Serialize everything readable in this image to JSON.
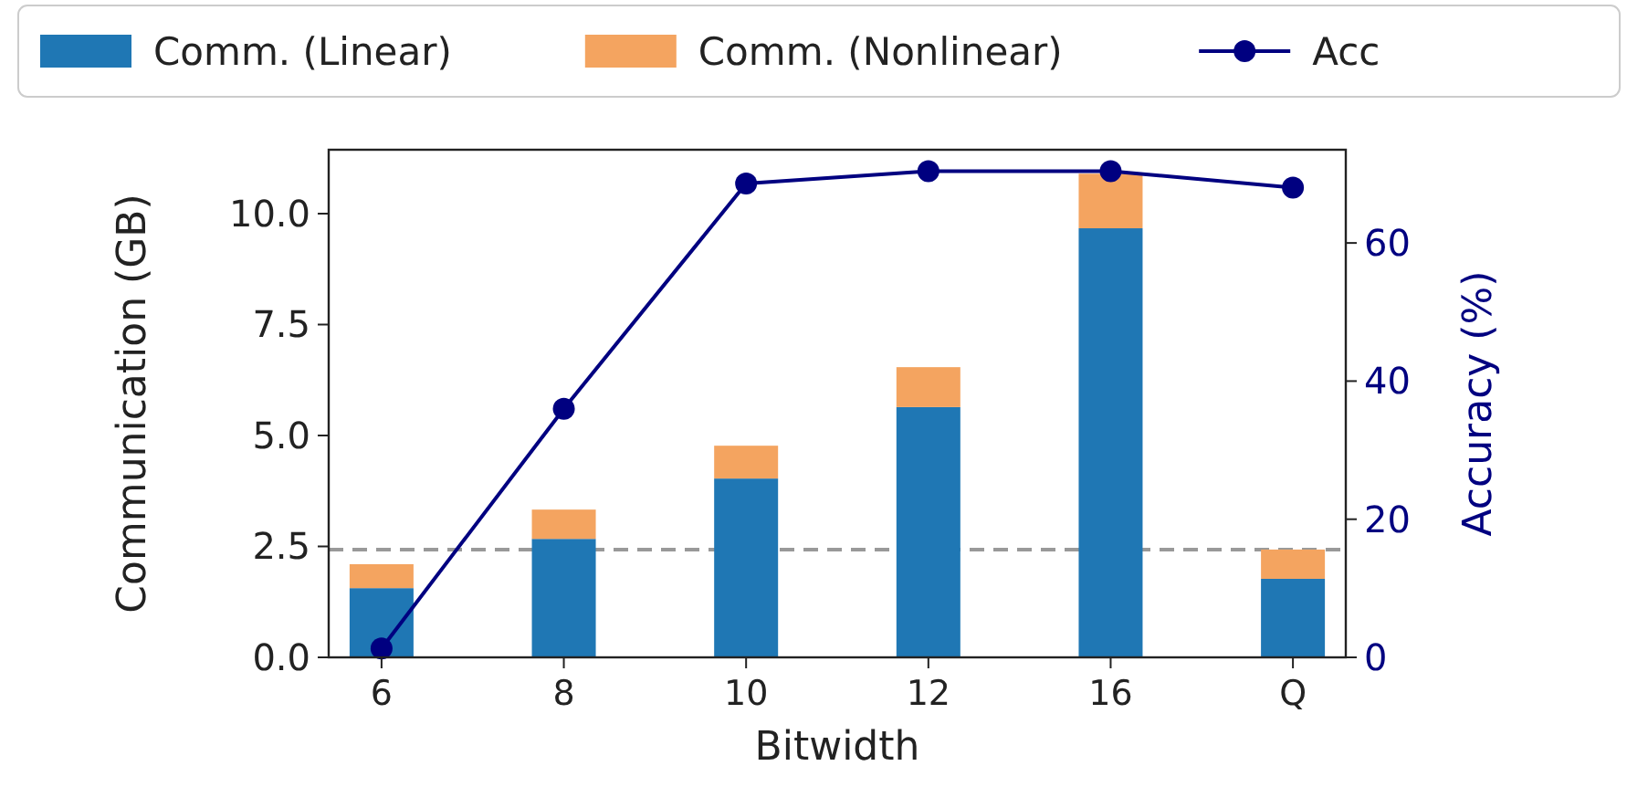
{
  "chart_data": {
    "type": "bar",
    "stacked": true,
    "xlabel": "Bitwidth",
    "ylabel": "Communication (GB)",
    "y2label": "Accuracy (%)",
    "categories": [
      "6",
      "8",
      "10",
      "12",
      "16",
      "Q"
    ],
    "series": [
      {
        "name": "Comm. (Linear)",
        "color": "#1f77b4",
        "values": [
          1.56,
          2.67,
          4.03,
          5.64,
          9.67,
          1.77
        ]
      },
      {
        "name": "Comm. (Nonlinear)",
        "color": "#f4a460",
        "values": [
          0.54,
          0.66,
          0.74,
          0.9,
          1.23,
          0.66
        ]
      },
      {
        "name": "Acc",
        "type": "line",
        "axis": "y2",
        "color": "#000080",
        "marker": "circle",
        "values": [
          1.3,
          36,
          68.6,
          70.4,
          70.4,
          68
        ]
      }
    ],
    "ylim": [
      0,
      11.44
    ],
    "yticks": [
      {
        "value": 0,
        "label": "0.0"
      },
      2.5,
      {
        "value": 5,
        "label": "5.0"
      },
      7.5,
      {
        "value": 10,
        "label": "10.0"
      }
    ],
    "y2lim": [
      0,
      73.5
    ],
    "y2ticks": [
      0,
      20,
      40,
      60
    ],
    "ref_lines": [
      {
        "axis": "y",
        "value": 2.43,
        "color": "#999999",
        "line_style": "dashed"
      }
    ],
    "legend": "top",
    "grid": false
  }
}
